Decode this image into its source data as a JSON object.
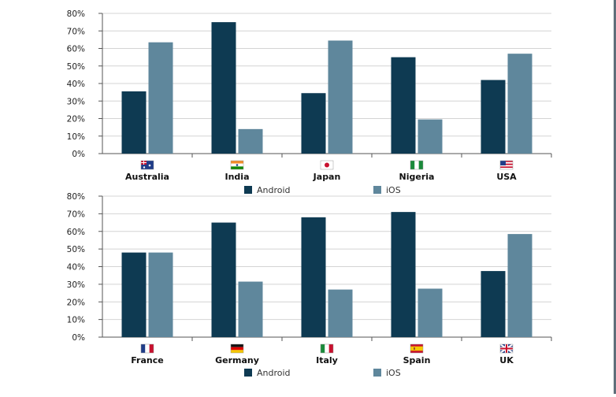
{
  "colors": {
    "android": "#0e3a52",
    "ios": "#5f879c",
    "grid": "#d4d4d4",
    "axis": "#555555"
  },
  "legend": [
    {
      "key": "android",
      "label": "Android"
    },
    {
      "key": "ios",
      "label": "iOS"
    }
  ],
  "chart_data": [
    {
      "type": "bar",
      "categories": [
        "Australia",
        "India",
        "Japan",
        "Nigeria",
        "USA"
      ],
      "flags": [
        "australia-flag-icon",
        "india-flag-icon",
        "japan-flag-icon",
        "nigeria-flag-icon",
        "usa-flag-icon"
      ],
      "series": [
        {
          "name": "Android",
          "values": [
            35.5,
            75,
            34.5,
            55,
            42
          ]
        },
        {
          "name": "iOS",
          "values": [
            63.5,
            14,
            64.5,
            19.5,
            57
          ]
        }
      ],
      "ylim": [
        0,
        80
      ],
      "yticks": [
        "0%",
        "10%",
        "20%",
        "30%",
        "40%",
        "50%",
        "60%",
        "70%",
        "80%"
      ],
      "grid": true,
      "legend_position": "bottom"
    },
    {
      "type": "bar",
      "categories": [
        "France",
        "Germany",
        "Italy",
        "Spain",
        "UK"
      ],
      "flags": [
        "france-flag-icon",
        "germany-flag-icon",
        "italy-flag-icon",
        "spain-flag-icon",
        "uk-flag-icon"
      ],
      "series": [
        {
          "name": "Android",
          "values": [
            48,
            65,
            68,
            71,
            37.5
          ]
        },
        {
          "name": "iOS",
          "values": [
            48,
            31.5,
            27,
            27.5,
            58.5
          ]
        }
      ],
      "ylim": [
        0,
        80
      ],
      "yticks": [
        "0%",
        "10%",
        "20%",
        "30%",
        "40%",
        "50%",
        "60%",
        "70%",
        "80%"
      ],
      "grid": true,
      "legend_position": "bottom"
    }
  ]
}
